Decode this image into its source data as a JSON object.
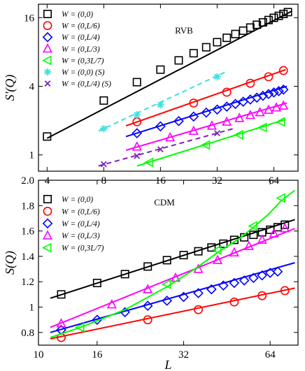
{
  "chart_data": [
    {
      "type": "scatter",
      "annotation": "RVB",
      "ylabel": "S'(Q)",
      "xlabel": "",
      "xscale": "log2",
      "yscale": "log2",
      "xlim": [
        3.6,
        86
      ],
      "ylim": [
        0.72,
        21
      ],
      "xticks": [
        4,
        8,
        16,
        32,
        64
      ],
      "xtick_labels": [
        "4",
        "8",
        "16",
        "32",
        "64"
      ],
      "yticks": [
        1,
        4,
        16
      ],
      "ytick_labels": [
        "1",
        "4",
        "16"
      ],
      "legend_position": "top-left",
      "series": [
        {
          "name": "W = (0,0)",
          "marker": "square",
          "color": "#000000",
          "line": "solid",
          "x": [
            4,
            8,
            12,
            16,
            20,
            24,
            28,
            32,
            36,
            40,
            44,
            48,
            52,
            56,
            60,
            64,
            68,
            72,
            76
          ],
          "y": [
            1.45,
            3.0,
            4.35,
            5.6,
            6.75,
            7.8,
            8.8,
            9.75,
            10.65,
            11.5,
            12.3,
            13.1,
            13.85,
            14.55,
            15.25,
            15.95,
            16.6,
            17.25,
            17.9
          ],
          "fit_x": [
            4,
            80
          ],
          "fit_y": [
            1.4,
            18.3
          ]
        },
        {
          "name": "W = (0,L/6)",
          "marker": "circle",
          "color": "#ff0000",
          "line": "solid",
          "x": [
            12,
            24,
            36,
            48,
            60,
            72
          ],
          "y": [
            1.95,
            2.85,
            3.55,
            4.25,
            4.85,
            5.5
          ],
          "fit_x": [
            10.5,
            74
          ],
          "fit_y": [
            1.8,
            5.6
          ]
        },
        {
          "name": "W = (0,L/4)",
          "marker": "diamond",
          "color": "#0000ff",
          "line": "solid",
          "x": [
            12,
            16,
            20,
            24,
            28,
            32,
            36,
            40,
            44,
            48,
            52,
            56,
            60,
            64,
            68,
            72
          ],
          "y": [
            1.55,
            1.78,
            1.98,
            2.17,
            2.35,
            2.5,
            2.65,
            2.8,
            2.93,
            3.06,
            3.18,
            3.3,
            3.42,
            3.53,
            3.63,
            3.74
          ],
          "fit_x": [
            10.5,
            75
          ],
          "fit_y": [
            1.45,
            4.0
          ]
        },
        {
          "name": "W = (0,L/3)",
          "marker": "triangle-up",
          "color": "#ff00ff",
          "line": "solid",
          "x": [
            12,
            18,
            24,
            30,
            36,
            42,
            48,
            54,
            60,
            66,
            72
          ],
          "y": [
            1.18,
            1.42,
            1.62,
            1.8,
            1.95,
            2.1,
            2.23,
            2.36,
            2.48,
            2.6,
            2.7
          ],
          "fit_x": [
            10.5,
            75
          ],
          "fit_y": [
            1.1,
            2.85
          ]
        },
        {
          "name": "W = (0,3L/7)",
          "marker": "triangle-left",
          "color": "#00ff00",
          "line": "solid",
          "x": [
            14,
            28,
            42,
            56,
            70
          ],
          "y": [
            0.86,
            1.22,
            1.5,
            1.74,
            1.95
          ],
          "fit_x": [
            12,
            74
          ],
          "fit_y": [
            0.8,
            2.05
          ]
        },
        {
          "name": "W = (0,0) (S)",
          "marker": "asterisk",
          "color": "#40e0e0",
          "line": "dashed",
          "x": [
            8,
            12,
            16,
            32
          ],
          "y": [
            1.7,
            2.25,
            2.75,
            4.85
          ],
          "fit_x": [
            7.5,
            36
          ],
          "fit_y": [
            1.62,
            5.4
          ]
        },
        {
          "name": "W = (0,L/4) (S)",
          "marker": "cross",
          "color": "#8020c0",
          "line": "dashed",
          "x": [
            8,
            12,
            16,
            32
          ],
          "y": [
            0.83,
            0.98,
            1.12,
            1.55
          ],
          "fit_x": [
            7.5,
            40
          ],
          "fit_y": [
            0.8,
            1.72
          ]
        }
      ]
    },
    {
      "type": "scatter",
      "annotation": "CDM",
      "ylabel": "S(Q)",
      "xlabel": "L",
      "xscale": "log2",
      "yscale": "linear",
      "xlim": [
        10,
        80
      ],
      "ylim": [
        0.7,
        2.0
      ],
      "xticks": [
        10,
        16,
        32,
        64
      ],
      "xtick_labels": [
        "10",
        "16",
        "32",
        "64"
      ],
      "yticks": [
        0.8,
        1.0,
        1.2,
        1.4,
        1.6,
        1.8,
        2.0
      ],
      "ytick_labels": [
        "0.8",
        "1",
        "1.2",
        "1.4",
        "1.6",
        "1.8",
        "2.0"
      ],
      "legend_position": "top-left",
      "series": [
        {
          "name": "W = (0,0)",
          "marker": "square",
          "color": "#000000",
          "line": "solid",
          "x": [
            12,
            16,
            20,
            24,
            28,
            32,
            36,
            40,
            44,
            48,
            52,
            56,
            60,
            64,
            68,
            72
          ],
          "y": [
            1.1,
            1.19,
            1.26,
            1.32,
            1.37,
            1.41,
            1.44,
            1.47,
            1.5,
            1.53,
            1.55,
            1.57,
            1.59,
            1.61,
            1.63,
            1.65
          ],
          "fit_x": [
            11,
            78
          ],
          "fit_y": [
            1.07,
            1.69
          ]
        },
        {
          "name": "W = (0,L/6)",
          "marker": "circle",
          "color": "#ff0000",
          "line": "solid",
          "x": [
            12,
            24,
            36,
            48,
            60,
            72
          ],
          "y": [
            0.76,
            0.9,
            0.98,
            1.04,
            1.09,
            1.13
          ],
          "fit_x": [
            11,
            78
          ],
          "fit_y": [
            0.75,
            1.15
          ]
        },
        {
          "name": "W = (0,L/4)",
          "marker": "diamond",
          "color": "#0000ff",
          "line": "solid",
          "x": [
            12,
            16,
            20,
            24,
            28,
            32,
            36,
            40,
            44,
            48,
            52,
            56,
            60,
            64,
            68
          ],
          "y": [
            0.82,
            0.9,
            0.96,
            1.01,
            1.05,
            1.08,
            1.11,
            1.14,
            1.17,
            1.19,
            1.21,
            1.23,
            1.25,
            1.27,
            1.28
          ],
          "fit_x": [
            11,
            78
          ],
          "fit_y": [
            0.8,
            1.35
          ]
        },
        {
          "name": "W = (0,L/3)",
          "marker": "triangle-up",
          "color": "#ff00ff",
          "line": "solid",
          "x": [
            12,
            18,
            24,
            30,
            36,
            42,
            48,
            54,
            60,
            66,
            72
          ],
          "y": [
            0.87,
            1.02,
            1.14,
            1.23,
            1.3,
            1.37,
            1.43,
            1.48,
            1.53,
            1.58,
            1.62
          ],
          "fit_x": [
            11,
            78
          ],
          "fit_y": [
            0.84,
            1.62
          ]
        },
        {
          "name": "W = (0,3L/7)",
          "marker": "triangle-left",
          "color": "#00ff00",
          "line": "solid",
          "x": [
            14,
            28,
            42,
            56,
            70
          ],
          "y": [
            0.84,
            1.18,
            1.45,
            1.64,
            1.86
          ],
          "fit_x": [
            11,
            14,
            20,
            28,
            35,
            42,
            50,
            56,
            63,
            70,
            78
          ],
          "fit_y": [
            0.76,
            0.84,
            0.98,
            1.16,
            1.3,
            1.43,
            1.54,
            1.63,
            1.73,
            1.84,
            1.92
          ]
        }
      ]
    }
  ]
}
